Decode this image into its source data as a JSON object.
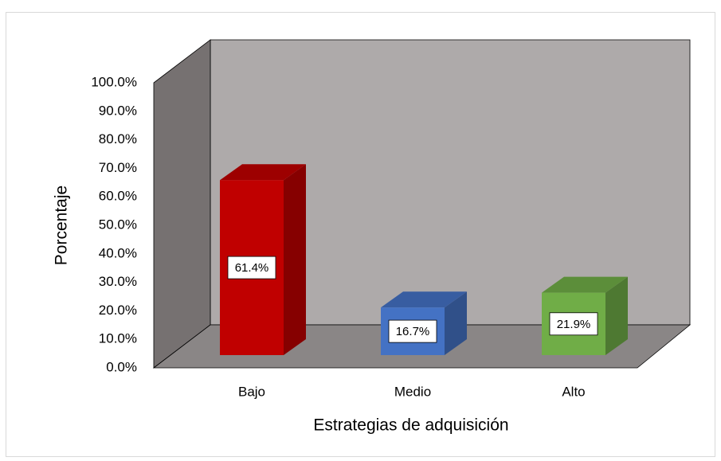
{
  "chart_data": {
    "type": "bar3d",
    "categories": [
      "Bajo",
      "Medio",
      "Alto"
    ],
    "values": [
      61.4,
      16.7,
      21.9
    ],
    "value_labels": [
      "61.4%",
      "16.7%",
      "21.9%"
    ],
    "colors": [
      "#c00000",
      "#4472c4",
      "#70ad47"
    ],
    "xlabel": "Estrategias de adquisición",
    "ylabel": "Porcentaje",
    "ylim": [
      0,
      100
    ],
    "yticks": [
      {
        "value": 0,
        "label": "0.0%"
      },
      {
        "value": 10,
        "label": "10.0%"
      },
      {
        "value": 20,
        "label": "20.0%"
      },
      {
        "value": 30,
        "label": "30.0%"
      },
      {
        "value": 40,
        "label": "40.0%"
      },
      {
        "value": 50,
        "label": "50.0%"
      },
      {
        "value": 60,
        "label": "60.0%"
      },
      {
        "value": 70,
        "label": "70.0%"
      },
      {
        "value": 80,
        "label": "80.0%"
      },
      {
        "value": 90,
        "label": "90.0%"
      },
      {
        "value": 100,
        "label": "100.0%"
      }
    ]
  }
}
